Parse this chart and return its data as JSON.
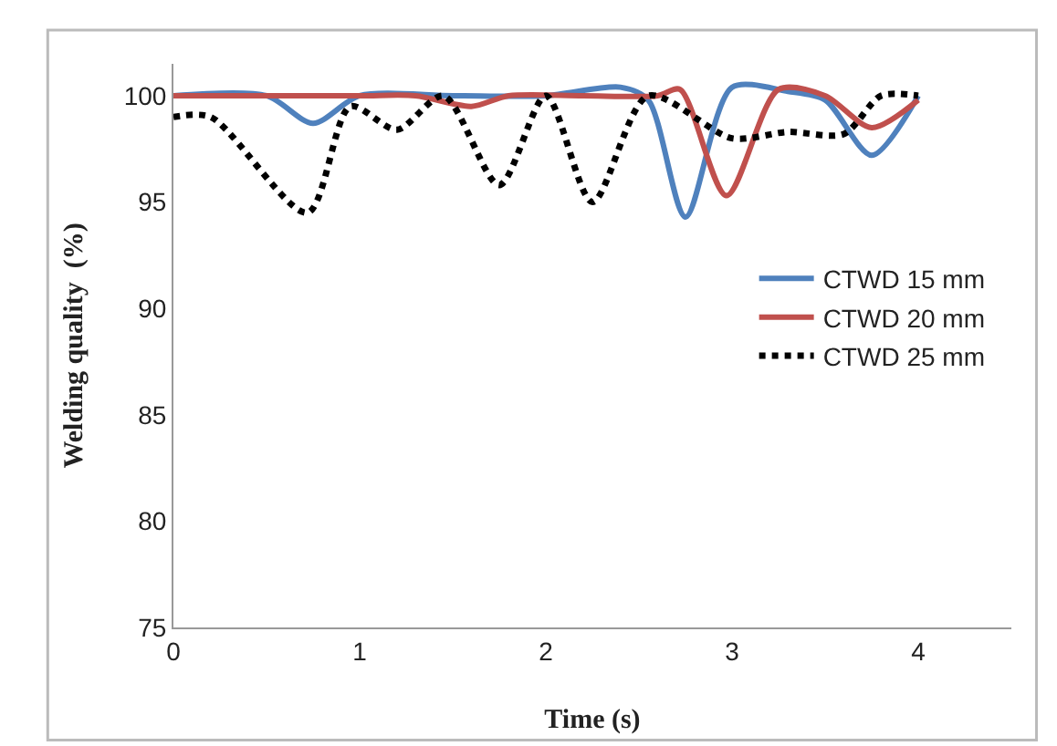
{
  "chart_data": {
    "type": "line",
    "xlabel": "Time (s)",
    "ylabel": "Welding quality  (%)",
    "xlim": [
      0,
      4.5
    ],
    "xticks": [
      0,
      1,
      2,
      3,
      4
    ],
    "ylim": [
      75,
      101.5
    ],
    "yticks": [
      75,
      80,
      85,
      90,
      95,
      100
    ],
    "grid": false,
    "legend": "right",
    "marker": "none",
    "series": [
      {
        "name": "CTWD 15 mm",
        "color": "#4f81bd",
        "line_style": "solid",
        "x": [
          0,
          0.5,
          0.75,
          1.0,
          1.5,
          2.0,
          2.4,
          2.55,
          2.75,
          3.0,
          3.3,
          3.5,
          3.75,
          4.0
        ],
        "values": [
          100,
          100,
          98.7,
          100,
          100,
          100,
          100.4,
          99.8,
          94.3,
          100.4,
          100.2,
          99.8,
          97.2,
          100
        ]
      },
      {
        "name": "CTWD 20 mm",
        "color": "#c0504d",
        "line_style": "solid",
        "x": [
          0,
          1.0,
          1.3,
          1.6,
          1.8,
          2.2,
          2.6,
          2.72,
          2.97,
          3.25,
          3.5,
          3.75,
          4.0
        ],
        "values": [
          100,
          100,
          100,
          99.5,
          100,
          100,
          100,
          100.3,
          95.3,
          100.3,
          100,
          98.5,
          99.8
        ]
      },
      {
        "name": "CTWD 25 mm",
        "color": "#000000",
        "line_style": "dotted",
        "x": [
          0,
          0.2,
          0.72,
          0.95,
          1.2,
          1.45,
          1.75,
          2.0,
          2.25,
          2.55,
          3.0,
          3.3,
          3.6,
          3.8,
          4.0
        ],
        "values": [
          99,
          99,
          94.5,
          99.5,
          98.4,
          100,
          95.8,
          100,
          95,
          100,
          98,
          98.3,
          98.2,
          100,
          100
        ]
      }
    ]
  }
}
